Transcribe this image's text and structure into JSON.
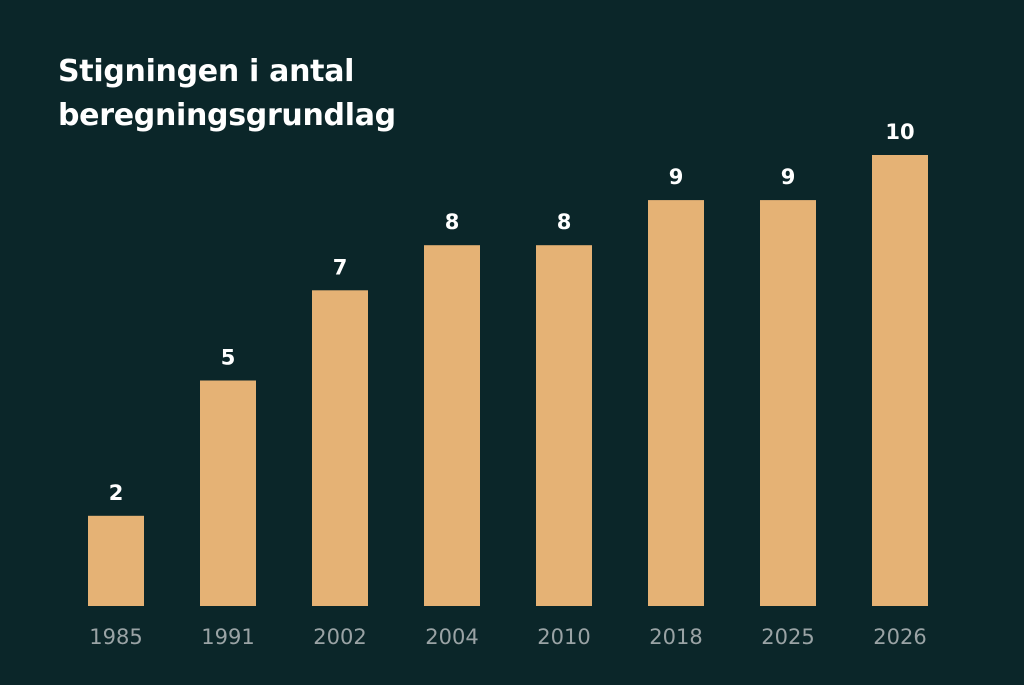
{
  "chart_data": {
    "type": "bar",
    "title_lines": [
      "Stigningen i antal",
      "beregningsgrundlag"
    ],
    "categories": [
      "1985",
      "1991",
      "2002",
      "2004",
      "2010",
      "2018",
      "2025",
      "2026"
    ],
    "values": [
      2,
      5,
      7,
      8,
      8,
      9,
      9,
      10
    ],
    "xlabel": "",
    "ylabel": "",
    "ylim": [
      0,
      10
    ],
    "grid": false,
    "data_labels": true,
    "colors": {
      "background": "#0b2629",
      "bar": "#e5b275",
      "title": "#ffffff",
      "value_label": "#ffffff",
      "tick_label": "#9aa3a5"
    }
  }
}
